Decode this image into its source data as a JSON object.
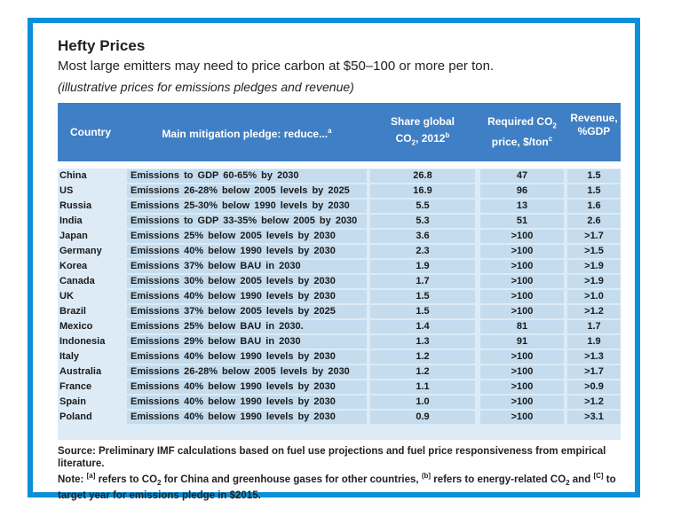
{
  "title": "Hefty Prices",
  "subtitle": "Most large emitters may need to price carbon at $50–100 or more per ton.",
  "italic_note": "(illustrative prices for emissions pledges and revenue)",
  "chart_data": {
    "type": "table",
    "columns": [
      "Country",
      "Main mitigation pledge: reduce...a",
      "Share global CO2, 2012b",
      "Required CO2 price, $/tonc",
      "Revenue, %GDP"
    ],
    "rows": [
      {
        "country": "China",
        "pledge": "Emissions to GDP 60-65% by 2030",
        "share": "26.8",
        "price": "47",
        "revenue": "1.5"
      },
      {
        "country": "US",
        "pledge": "Emissions 26-28% below 2005 levels by 2025",
        "share": "16.9",
        "price": "96",
        "revenue": "1.5"
      },
      {
        "country": "Russia",
        "pledge": "Emissions 25-30% below 1990 levels by 2030",
        "share": "5.5",
        "price": "13",
        "revenue": "1.6"
      },
      {
        "country": "India",
        "pledge": "Emissions to GDP 33-35% below 2005 by 2030",
        "share": "5.3",
        "price": "51",
        "revenue": "2.6"
      },
      {
        "country": "Japan",
        "pledge": "Emissions 25% below 2005 levels by 2030",
        "share": "3.6",
        "price": ">100",
        "revenue": ">1.7"
      },
      {
        "country": "Germany",
        "pledge": "Emissions 40% below 1990 levels by 2030",
        "share": "2.3",
        "price": ">100",
        "revenue": ">1.5"
      },
      {
        "country": "Korea",
        "pledge": "Emissions 37% below BAU in 2030",
        "share": "1.9",
        "price": ">100",
        "revenue": ">1.9"
      },
      {
        "country": "Canada",
        "pledge": "Emissions 30% below 2005 levels by 2030",
        "share": "1.7",
        "price": ">100",
        "revenue": ">1.9"
      },
      {
        "country": "UK",
        "pledge": "Emissions 40% below 1990 levels by 2030",
        "share": "1.5",
        "price": ">100",
        "revenue": ">1.0"
      },
      {
        "country": "Brazil",
        "pledge": "Emissions 37% below 2005 levels by 2025",
        "share": "1.5",
        "price": ">100",
        "revenue": ">1.2"
      },
      {
        "country": "Mexico",
        "pledge": "Emissions 25% below BAU in 2030.",
        "share": "1.4",
        "price": "81",
        "revenue": "1.7"
      },
      {
        "country": "Indonesia",
        "pledge": "Emissions 29% below BAU in 2030",
        "share": "1.3",
        "price": "91",
        "revenue": "1.9"
      },
      {
        "country": "Italy",
        "pledge": "Emissions 40% below 1990 levels by 2030",
        "share": "1.2",
        "price": ">100",
        "revenue": ">1.3"
      },
      {
        "country": "Australia",
        "pledge": "Emissions 26-28% below 2005 levels by 2030",
        "share": "1.2",
        "price": ">100",
        "revenue": ">1.7"
      },
      {
        "country": "France",
        "pledge": "Emissions 40% below 1990 levels by 2030",
        "share": "1.1",
        "price": ">100",
        "revenue": ">0.9"
      },
      {
        "country": "Spain",
        "pledge": "Emissions 40% below 1990 levels by 2030",
        "share": "1.0",
        "price": ">100",
        "revenue": ">1.2"
      },
      {
        "country": "Poland",
        "pledge": "Emissions 40% below 1990 levels by 2030",
        "share": "0.9",
        "price": ">100",
        "revenue": ">3.1"
      }
    ]
  },
  "header": {
    "country": "Country",
    "pledge": "Main mitigation pledge: reduce...",
    "pledge_sup": "a",
    "share_line1": "Share global",
    "share_co": "CO",
    "share_sub": "2",
    "share_rest": ", 2012",
    "share_sup": "b",
    "price_line1": "Required CO",
    "price_sub": "2",
    "price_line2": "price, $/ton",
    "price_sup": "c",
    "revenue_line1": "Revenue,",
    "revenue_line2": "%GDP"
  },
  "source": "Source: Preliminary IMF calculations based on fuel use projections and fuel price responsiveness from empirical literature.",
  "note": {
    "prefix": "Note: ",
    "a_mark": "[a]",
    "a_text": " refers to CO",
    "a_sub": "2",
    "a_text2": " for China and greenhouse gases for other countries, ",
    "b_mark": "(b]",
    "b_text": " refers to energy-related CO",
    "b_sub": "2",
    "c_text0": " and ",
    "c_mark": "[C]",
    "c_text": " to target year for emissions pledge in $2015."
  }
}
